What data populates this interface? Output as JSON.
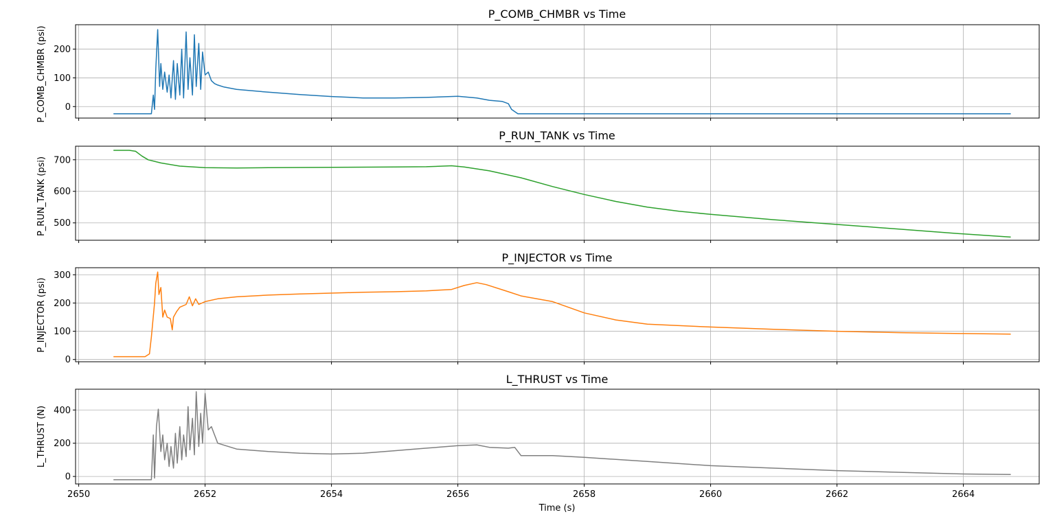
{
  "chart_data": [
    {
      "type": "line",
      "title": "P_COMB_CHMBR vs Time",
      "xlabel": "",
      "ylabel": "P_COMB_CHMBR (psi)",
      "xlim": [
        2649.95,
        2665.2
      ],
      "ylim": [
        -40,
        285
      ],
      "xticks": [
        2650,
        2652,
        2654,
        2656,
        2658,
        2660,
        2662,
        2664
      ],
      "yticks": [
        0,
        100,
        200
      ],
      "grid": true,
      "color": "#1f77b4",
      "series": [
        {
          "x": [
            2650.55,
            2651.0,
            2651.15,
            2651.18,
            2651.2,
            2651.22,
            2651.25,
            2651.28,
            2651.3,
            2651.33,
            2651.36,
            2651.4,
            2651.43,
            2651.46,
            2651.5,
            2651.53,
            2651.56,
            2651.6,
            2651.63,
            2651.66,
            2651.7,
            2651.73,
            2651.76,
            2651.8,
            2651.83,
            2651.86,
            2651.9,
            2651.93,
            2651.96,
            2652.0,
            2652.05,
            2652.1,
            2652.15,
            2652.2,
            2652.3,
            2652.5,
            2653.0,
            2653.5,
            2654.0,
            2654.5,
            2655.0,
            2655.5,
            2656.0,
            2656.3,
            2656.5,
            2656.7,
            2656.8,
            2656.85,
            2656.95,
            2657.5,
            2658.0,
            2660.0,
            2662.0,
            2664.0,
            2664.75
          ],
          "y": [
            -25,
            -25,
            -25,
            40,
            -10,
            130,
            268,
            70,
            150,
            60,
            120,
            50,
            110,
            30,
            160,
            25,
            150,
            40,
            200,
            30,
            260,
            60,
            170,
            40,
            250,
            70,
            220,
            60,
            190,
            110,
            120,
            90,
            80,
            75,
            68,
            60,
            50,
            42,
            35,
            30,
            30,
            32,
            36,
            30,
            22,
            18,
            10,
            -10,
            -25,
            -25,
            -25,
            -25,
            -25,
            -25,
            -25
          ]
        }
      ]
    },
    {
      "type": "line",
      "title": "P_RUN_TANK vs Time",
      "xlabel": "",
      "ylabel": "P_RUN_TANK (psi)",
      "xlim": [
        2649.95,
        2665.2
      ],
      "ylim": [
        445,
        743
      ],
      "xticks": [
        2650,
        2652,
        2654,
        2656,
        2658,
        2660,
        2662,
        2664
      ],
      "yticks": [
        500,
        600,
        700
      ],
      "grid": true,
      "color": "#2ca02c",
      "series": [
        {
          "x": [
            2650.55,
            2650.8,
            2650.9,
            2651.0,
            2651.1,
            2651.3,
            2651.6,
            2652.0,
            2652.5,
            2653.0,
            2654.0,
            2655.0,
            2655.5,
            2655.9,
            2656.1,
            2656.5,
            2657.0,
            2657.5,
            2658.0,
            2658.5,
            2659.0,
            2659.5,
            2660.0,
            2661.0,
            2662.0,
            2663.0,
            2664.0,
            2664.75
          ],
          "y": [
            730,
            730,
            727,
            712,
            700,
            690,
            680,
            675,
            674,
            675,
            676,
            677,
            678,
            681,
            677,
            665,
            643,
            615,
            590,
            568,
            550,
            537,
            527,
            510,
            495,
            480,
            465,
            455
          ]
        }
      ]
    },
    {
      "type": "line",
      "title": "P_INJECTOR vs Time",
      "xlabel": "",
      "ylabel": "P_INJECTOR (psi)",
      "xlim": [
        2649.95,
        2665.2
      ],
      "ylim": [
        -8,
        325
      ],
      "xticks": [
        2650,
        2652,
        2654,
        2656,
        2658,
        2660,
        2662,
        2664
      ],
      "yticks": [
        0,
        100,
        200,
        300
      ],
      "grid": true,
      "color": "#ff7f0e",
      "series": [
        {
          "x": [
            2650.55,
            2651.05,
            2651.12,
            2651.15,
            2651.2,
            2651.22,
            2651.25,
            2651.27,
            2651.3,
            2651.33,
            2651.36,
            2651.4,
            2651.45,
            2651.48,
            2651.5,
            2651.55,
            2651.6,
            2651.7,
            2651.75,
            2651.8,
            2651.85,
            2651.9,
            2652.0,
            2652.2,
            2652.5,
            2653.0,
            2653.5,
            2654.0,
            2654.5,
            2655.0,
            2655.5,
            2655.9,
            2656.1,
            2656.3,
            2656.45,
            2656.8,
            2657.0,
            2657.5,
            2658.0,
            2658.5,
            2659.0,
            2660.0,
            2661.0,
            2662.0,
            2663.0,
            2664.0,
            2664.75
          ],
          "y": [
            10,
            10,
            20,
            80,
            200,
            270,
            310,
            230,
            255,
            150,
            175,
            150,
            145,
            105,
            150,
            170,
            185,
            195,
            222,
            190,
            215,
            195,
            205,
            215,
            222,
            228,
            232,
            235,
            238,
            240,
            243,
            248,
            262,
            272,
            265,
            240,
            225,
            205,
            165,
            140,
            125,
            115,
            107,
            100,
            95,
            92,
            90
          ]
        }
      ]
    },
    {
      "type": "line",
      "title": "L_THRUST vs Time",
      "xlabel": "Time (s)",
      "ylabel": "L_THRUST (N)",
      "xlim": [
        2649.95,
        2665.2
      ],
      "ylim": [
        -45,
        525
      ],
      "xticks": [
        2650,
        2652,
        2654,
        2656,
        2658,
        2660,
        2662,
        2664
      ],
      "yticks": [
        0,
        200,
        400
      ],
      "grid": true,
      "color": "#7f7f7f",
      "series": [
        {
          "x": [
            2650.55,
            2651.1,
            2651.15,
            2651.18,
            2651.2,
            2651.23,
            2651.26,
            2651.3,
            2651.33,
            2651.36,
            2651.4,
            2651.43,
            2651.46,
            2651.5,
            2651.53,
            2651.56,
            2651.6,
            2651.63,
            2651.66,
            2651.7,
            2651.73,
            2651.76,
            2651.8,
            2651.83,
            2651.86,
            2651.9,
            2651.93,
            2651.96,
            2652.0,
            2652.05,
            2652.1,
            2652.15,
            2652.2,
            2652.5,
            2653.0,
            2653.5,
            2654.0,
            2654.5,
            2655.0,
            2655.5,
            2656.0,
            2656.3,
            2656.5,
            2656.8,
            2656.9,
            2657.0,
            2657.5,
            2658.0,
            2659.0,
            2660.0,
            2661.0,
            2662.0,
            2663.0,
            2664.0,
            2664.75
          ],
          "y": [
            -20,
            -20,
            -20,
            250,
            -10,
            300,
            405,
            150,
            250,
            100,
            200,
            60,
            180,
            50,
            260,
            80,
            300,
            100,
            250,
            120,
            420,
            160,
            350,
            130,
            510,
            180,
            380,
            200,
            500,
            280,
            300,
            250,
            200,
            165,
            150,
            140,
            135,
            140,
            155,
            170,
            185,
            190,
            175,
            170,
            175,
            125,
            125,
            115,
            90,
            65,
            50,
            35,
            25,
            15,
            12
          ]
        }
      ]
    }
  ]
}
